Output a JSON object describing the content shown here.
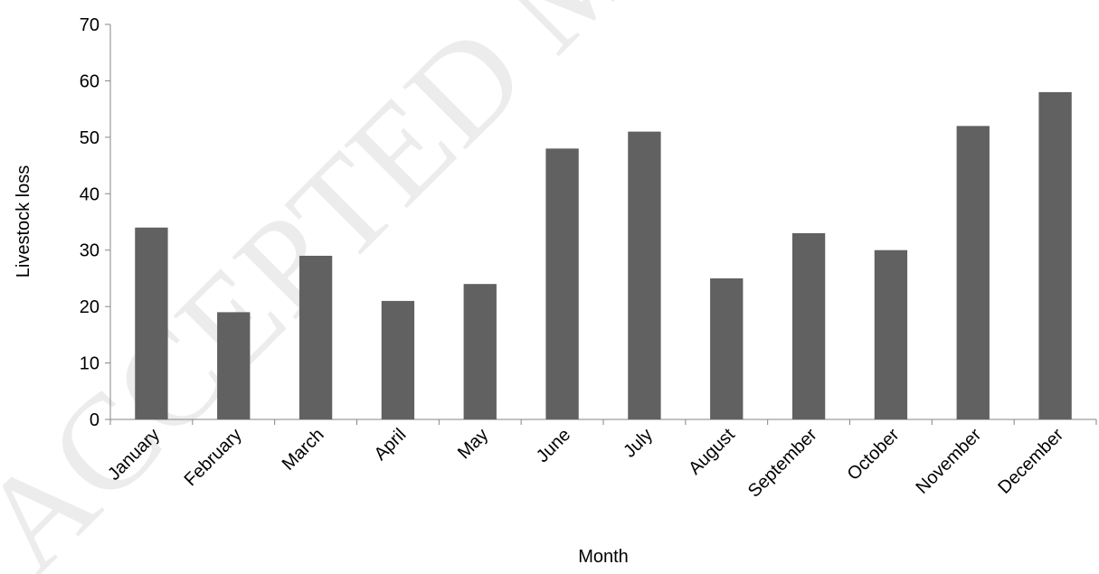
{
  "chart_data": {
    "type": "bar",
    "watermark": "ACCEPTED MANUSCRIPT",
    "x_label": "Month",
    "y_label": "Livestock loss",
    "categories": [
      "January",
      "February",
      "March",
      "April",
      "May",
      "June",
      "July",
      "August",
      "September",
      "October",
      "November",
      "December"
    ],
    "values": [
      34,
      19,
      29,
      21,
      24,
      48,
      51,
      25,
      33,
      30,
      52,
      58
    ],
    "color": "#616161",
    "ylim": [
      0,
      70
    ],
    "yticks": [
      0,
      10,
      20,
      30,
      40,
      50,
      60,
      70
    ],
    "grid": false
  }
}
